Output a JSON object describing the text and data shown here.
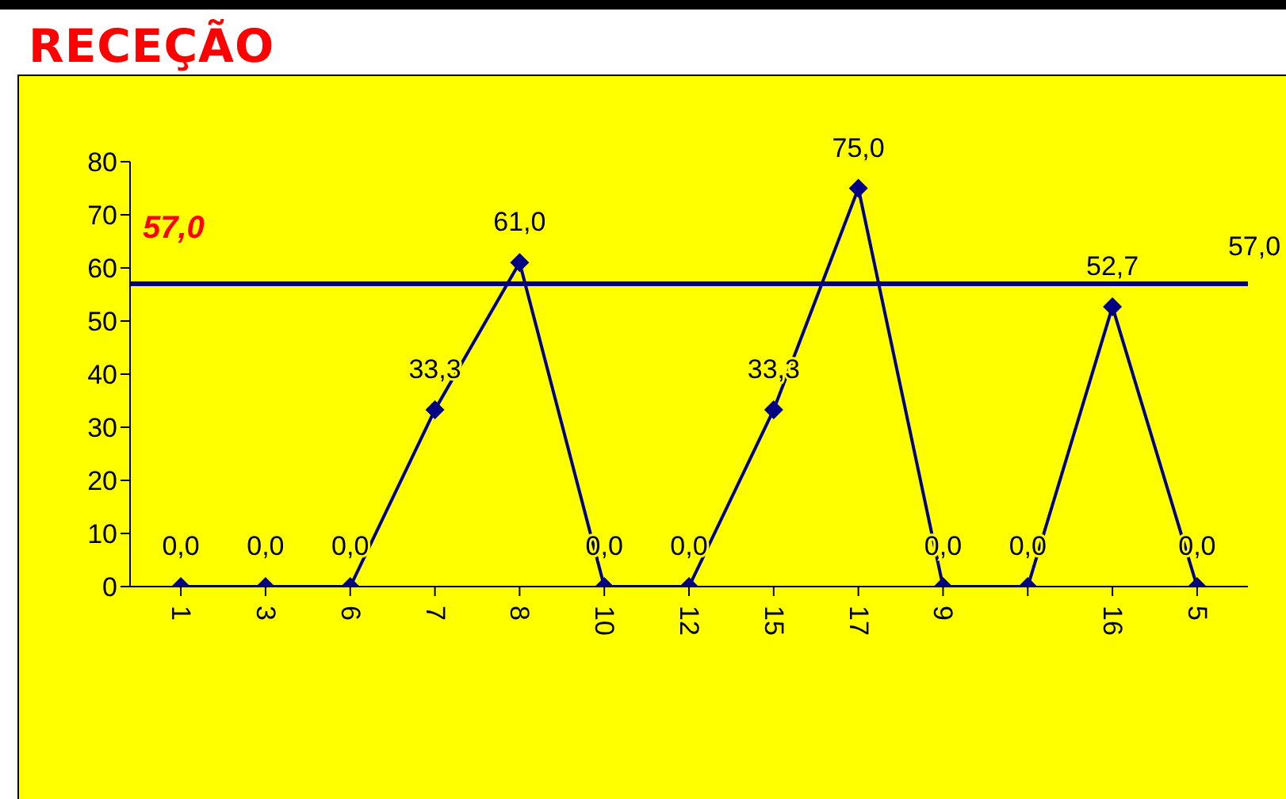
{
  "chart_data": {
    "type": "line",
    "title": "RECEÇÃO",
    "categories": [
      "1",
      "3",
      "6",
      "7",
      "8",
      "10",
      "12",
      "15",
      "17",
      "9",
      null,
      "16",
      "5"
    ],
    "series": [
      {
        "color": "#000080",
        "values": [
          0,
          0,
          0,
          33.3,
          61,
          0,
          0,
          33.3,
          75,
          0,
          0,
          52.7,
          0
        ],
        "value_labels": [
          "0,0",
          "0,0",
          "0,0",
          "33,3",
          "61,0",
          "0,0",
          "0,0",
          "33,3",
          "75,0",
          "0,0",
          "0,0",
          "52,7",
          "0,0"
        ]
      }
    ],
    "ylim": [
      0,
      80
    ],
    "yticks": [
      0,
      10,
      20,
      30,
      40,
      50,
      60,
      70,
      80
    ],
    "ref_lines": [
      {
        "axis": "y",
        "value": 57,
        "label": "57,0",
        "color": "#000080"
      }
    ],
    "annotations": [
      {
        "text": "57,0",
        "y": 57
      }
    ],
    "marker": "diamond",
    "line_style": "solid"
  }
}
